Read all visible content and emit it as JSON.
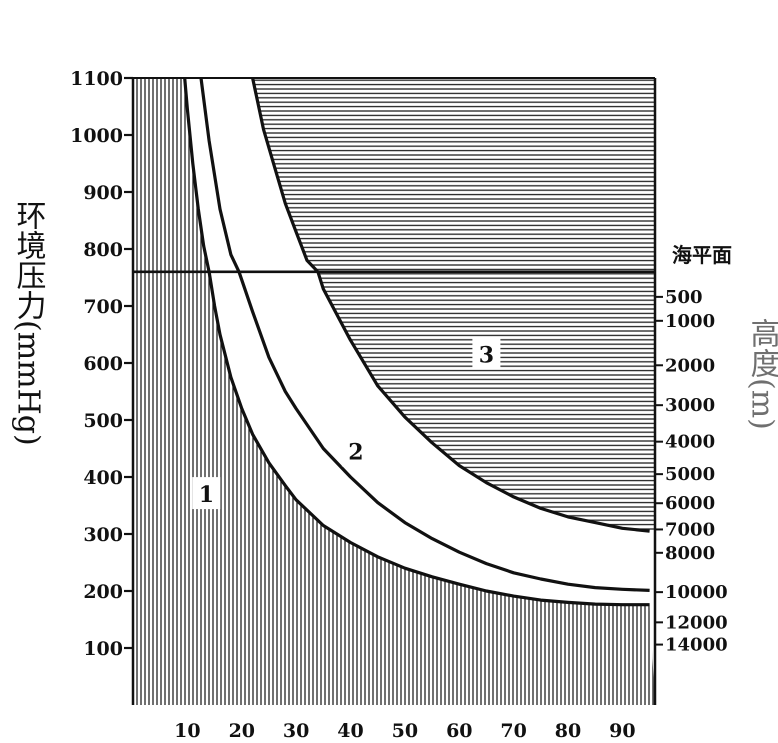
{
  "chart_data": {
    "type": "line",
    "title": "",
    "xlabel": "",
    "ylabel": "环境压力(mmHg)",
    "y2label": "高度(m)",
    "xlim": [
      0,
      96
    ],
    "ylim": [
      0,
      1100
    ],
    "x_ticks": [
      "10",
      "20",
      "30",
      "40",
      "50",
      "60",
      "70",
      "80",
      "90"
    ],
    "y_ticks": [
      "100",
      "200",
      "300",
      "400",
      "500",
      "600",
      "700",
      "800",
      "900",
      "1000",
      "1100"
    ],
    "altitude_ticks": [
      {
        "label": "500",
        "pressure": 716
      },
      {
        "label": "1000",
        "pressure": 674
      },
      {
        "label": "2000",
        "pressure": 596
      },
      {
        "label": "3000",
        "pressure": 526
      },
      {
        "label": "4000",
        "pressure": 462
      },
      {
        "label": "5000",
        "pressure": 405
      },
      {
        "label": "6000",
        "pressure": 354
      },
      {
        "label": "7000",
        "pressure": 308
      },
      {
        "label": "8000",
        "pressure": 267
      },
      {
        "label": "10000",
        "pressure": 198
      },
      {
        "label": "12000",
        "pressure": 145
      },
      {
        "label": "14000",
        "pressure": 106
      }
    ],
    "sea_level": {
      "label": "海平面",
      "pressure": 760
    },
    "series": [
      {
        "x": [
          9.5,
          10,
          11,
          12,
          13,
          14,
          15,
          16,
          18,
          20,
          22,
          25,
          28,
          30,
          35,
          40,
          45,
          50,
          55,
          60,
          65,
          70,
          75,
          80,
          85,
          90,
          95
        ],
        "y": [
          1100,
          1045,
          950,
          870,
          805,
          760,
          700,
          650,
          575,
          520,
          475,
          425,
          385,
          360,
          315,
          285,
          260,
          240,
          225,
          212,
          200,
          191,
          184,
          180,
          177,
          176,
          176
        ]
      },
      {
        "x": [
          12.5,
          14,
          16,
          18,
          19.5,
          22,
          25,
          28,
          30,
          35,
          40,
          45,
          50,
          55,
          60,
          65,
          70,
          75,
          80,
          85,
          90,
          95
        ],
        "y": [
          1100,
          990,
          870,
          790,
          760,
          690,
          610,
          550,
          520,
          450,
          400,
          355,
          320,
          292,
          268,
          248,
          232,
          221,
          212,
          206,
          203,
          201
        ]
      },
      {
        "x": [
          22,
          24,
          26,
          28,
          30,
          32,
          34,
          35,
          40,
          45,
          50,
          55,
          60,
          65,
          70,
          75,
          80,
          85,
          90,
          95
        ],
        "y": [
          1100,
          1010,
          945,
          880,
          830,
          780,
          760,
          730,
          640,
          560,
          505,
          460,
          420,
          390,
          365,
          345,
          330,
          320,
          310,
          305
        ]
      }
    ],
    "regions": [
      {
        "label": "1",
        "x": 13.5,
        "y": 370
      },
      {
        "label": "2",
        "x": 41,
        "y": 445
      },
      {
        "label": "3",
        "x": 65,
        "y": 615
      }
    ]
  }
}
